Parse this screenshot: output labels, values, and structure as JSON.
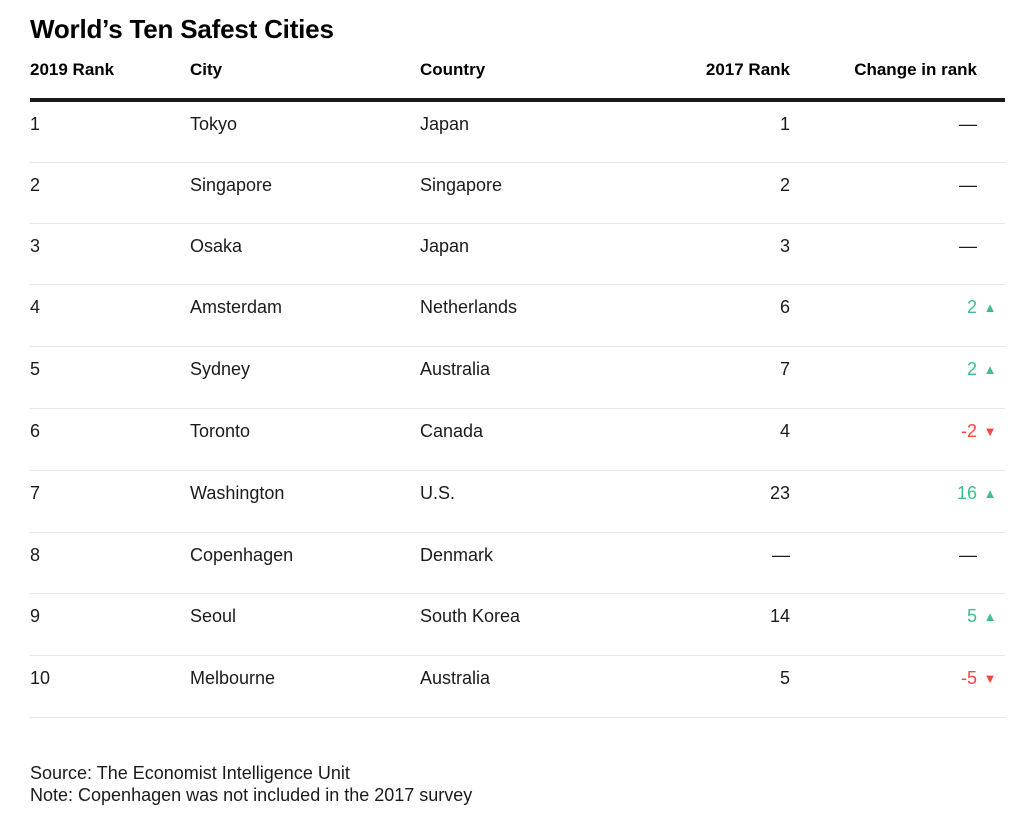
{
  "title": "World’s Ten Safest Cities",
  "chart_data": {
    "type": "table",
    "title": "World’s Ten Safest Cities",
    "columns": [
      "2019 Rank",
      "City",
      "Country",
      "2017 Rank",
      "Change in rank"
    ],
    "rows": [
      {
        "rank_2019": "1",
        "city": "Tokyo",
        "country": "Japan",
        "rank_2017": "1",
        "change": "—",
        "direction": "none"
      },
      {
        "rank_2019": "2",
        "city": "Singapore",
        "country": "Singapore",
        "rank_2017": "2",
        "change": "—",
        "direction": "none"
      },
      {
        "rank_2019": "3",
        "city": "Osaka",
        "country": "Japan",
        "rank_2017": "3",
        "change": "—",
        "direction": "none"
      },
      {
        "rank_2019": "4",
        "city": "Amsterdam",
        "country": "Netherlands",
        "rank_2017": "6",
        "change": "2",
        "direction": "up"
      },
      {
        "rank_2019": "5",
        "city": "Sydney",
        "country": "Australia",
        "rank_2017": "7",
        "change": "2",
        "direction": "up"
      },
      {
        "rank_2019": "6",
        "city": "Toronto",
        "country": "Canada",
        "rank_2017": "4",
        "change": "-2",
        "direction": "down"
      },
      {
        "rank_2019": "7",
        "city": "Washington",
        "country": "U.S.",
        "rank_2017": "23",
        "change": "16",
        "direction": "up"
      },
      {
        "rank_2019": "8",
        "city": "Copenhagen",
        "country": "Denmark",
        "rank_2017": "—",
        "change": "—",
        "direction": "none"
      },
      {
        "rank_2019": "9",
        "city": "Seoul",
        "country": "South Korea",
        "rank_2017": "14",
        "change": "5",
        "direction": "up"
      },
      {
        "rank_2019": "10",
        "city": "Melbourne",
        "country": "Australia",
        "rank_2017": "5",
        "change": "-5",
        "direction": "down"
      }
    ],
    "source": "Source: The Economist Intelligence Unit",
    "note": "Note: Copenhagen was not included in the 2017 survey"
  },
  "icons": {
    "up": "▲",
    "down": "▼"
  },
  "colors": {
    "positive": "#3dbe8c",
    "negative": "#f9473f",
    "text": "#1b1b1b",
    "rule_heavy": "#1a1a1a",
    "rule_light": "#e6e6e6"
  }
}
